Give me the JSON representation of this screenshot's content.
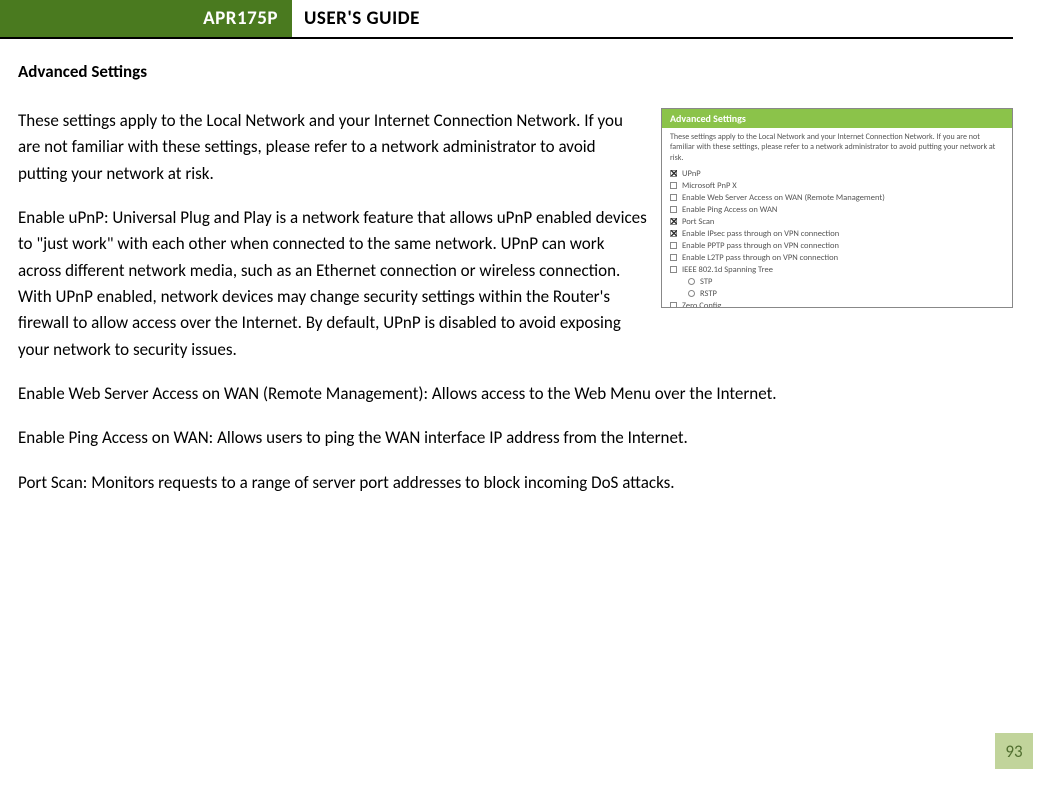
{
  "header": {
    "model": "APR175P",
    "title": "USER'S GUIDE"
  },
  "section_title": "Advanced Settings",
  "paragraphs": {
    "p1": "These settings apply to the Local Network and your Internet Connection Network.  If you are not familiar with these settings, please refer to a network administrator to avoid putting your network at risk.",
    "p2": "Enable uPnP: Universal Plug and Play is a network feature that allows uPnP enabled devices to \"just work\" with each other when connected to the same network.  UPnP can work across different network media, such as an Ethernet connection or wireless connection.  With UPnP enabled, network devices may change security settings within the Router's firewall to allow access over the Internet.  By default, UPnP is disabled to avoid exposing your network to security issues.",
    "p3": "Enable Web Server Access on WAN (Remote Management): Allows access to the Web Menu over the Internet.",
    "p4": "Enable Ping Access on WAN: Allows users to ping the WAN interface IP address from the Internet.",
    "p5": "Port Scan:  Monitors requests to a range of server port addresses to block incoming DoS attacks."
  },
  "screenshot": {
    "header": "Advanced Settings",
    "intro": "These settings apply to the Local Network and your Internet Connection Network. If you are not familiar with these settings, please refer to a network administrator to avoid putting your network at risk.",
    "items": [
      {
        "label": "UPnP",
        "checked": true,
        "sub": false,
        "type": "checkbox"
      },
      {
        "label": "Microsoft PnP X",
        "checked": false,
        "sub": false,
        "type": "checkbox"
      },
      {
        "label": "Enable Web Server Access on WAN (Remote Management)",
        "checked": false,
        "sub": false,
        "type": "checkbox"
      },
      {
        "label": "Enable Ping Access on WAN",
        "checked": false,
        "sub": false,
        "type": "checkbox"
      },
      {
        "label": "Port Scan",
        "checked": true,
        "sub": false,
        "type": "checkbox"
      },
      {
        "label": "Enable IPsec pass through on VPN connection",
        "checked": true,
        "sub": false,
        "type": "checkbox"
      },
      {
        "label": "Enable PPTP pass through on VPN connection",
        "checked": false,
        "sub": false,
        "type": "checkbox"
      },
      {
        "label": "Enable L2TP pass through on VPN connection",
        "checked": false,
        "sub": false,
        "type": "checkbox"
      },
      {
        "label": "IEEE 802.1d Spanning Tree",
        "checked": false,
        "sub": false,
        "type": "checkbox"
      },
      {
        "label": "STP",
        "checked": false,
        "sub": true,
        "type": "radio"
      },
      {
        "label": "RSTP",
        "checked": false,
        "sub": true,
        "type": "radio"
      },
      {
        "label": "Zero Config",
        "checked": false,
        "sub": false,
        "type": "checkbox"
      }
    ]
  },
  "page_number": "93",
  "colors": {
    "header_bg": "#4a7a1f",
    "page_num_bg": "#c1d49b",
    "page_num_color": "#506e2f",
    "ss_header_bg": "#8bc34a"
  }
}
